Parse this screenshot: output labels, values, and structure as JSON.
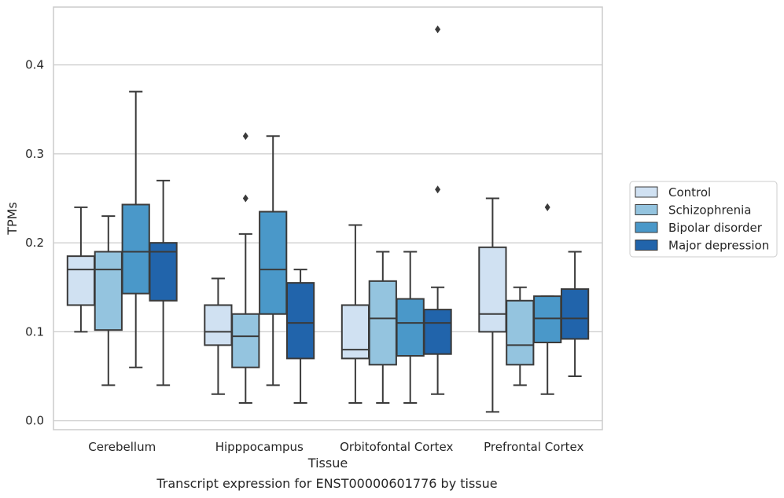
{
  "chart_data": {
    "type": "box",
    "title": "",
    "xlabel": "Tissue",
    "ylabel": "TPMs",
    "ylim": [
      -0.01,
      0.465
    ],
    "yticks": [
      0.0,
      0.1,
      0.2,
      0.3,
      0.4
    ],
    "ytick_labels": [
      "0.0",
      "0.1",
      "0.2",
      "0.3",
      "0.4"
    ],
    "grid": "y",
    "legend_position": "right",
    "categories": [
      "Cerebellum",
      "Hipppocampus",
      "Orbitofontal Cortex",
      "Prefrontal Cortex"
    ],
    "series": [
      {
        "name": "Control",
        "color": "#d0e1f2",
        "boxes": [
          {
            "whisker_low": 0.1,
            "q1": 0.13,
            "median": 0.17,
            "q3": 0.185,
            "whisker_high": 0.24,
            "outliers": []
          },
          {
            "whisker_low": 0.03,
            "q1": 0.085,
            "median": 0.1,
            "q3": 0.13,
            "whisker_high": 0.16,
            "outliers": []
          },
          {
            "whisker_low": 0.02,
            "q1": 0.07,
            "median": 0.08,
            "q3": 0.13,
            "whisker_high": 0.22,
            "outliers": []
          },
          {
            "whisker_low": 0.01,
            "q1": 0.1,
            "median": 0.12,
            "q3": 0.195,
            "whisker_high": 0.25,
            "outliers": []
          }
        ]
      },
      {
        "name": "Schizophrenia",
        "color": "#94c4df",
        "boxes": [
          {
            "whisker_low": 0.04,
            "q1": 0.102,
            "median": 0.17,
            "q3": 0.19,
            "whisker_high": 0.23,
            "outliers": []
          },
          {
            "whisker_low": 0.02,
            "q1": 0.06,
            "median": 0.095,
            "q3": 0.12,
            "whisker_high": 0.21,
            "outliers": [
              0.25,
              0.32
            ]
          },
          {
            "whisker_low": 0.02,
            "q1": 0.063,
            "median": 0.115,
            "q3": 0.157,
            "whisker_high": 0.19,
            "outliers": []
          },
          {
            "whisker_low": 0.04,
            "q1": 0.063,
            "median": 0.085,
            "q3": 0.135,
            "whisker_high": 0.15,
            "outliers": []
          }
        ]
      },
      {
        "name": "Bipolar disorder",
        "color": "#4a98c9",
        "boxes": [
          {
            "whisker_low": 0.06,
            "q1": 0.143,
            "median": 0.19,
            "q3": 0.243,
            "whisker_high": 0.37,
            "outliers": []
          },
          {
            "whisker_low": 0.04,
            "q1": 0.12,
            "median": 0.17,
            "q3": 0.235,
            "whisker_high": 0.32,
            "outliers": []
          },
          {
            "whisker_low": 0.02,
            "q1": 0.073,
            "median": 0.11,
            "q3": 0.137,
            "whisker_high": 0.19,
            "outliers": []
          },
          {
            "whisker_low": 0.03,
            "q1": 0.088,
            "median": 0.115,
            "q3": 0.14,
            "whisker_high": 0.14,
            "outliers": [
              0.24
            ]
          }
        ]
      },
      {
        "name": "Major depression",
        "color": "#2164ab",
        "boxes": [
          {
            "whisker_low": 0.04,
            "q1": 0.135,
            "median": 0.19,
            "q3": 0.2,
            "whisker_high": 0.27,
            "outliers": []
          },
          {
            "whisker_low": 0.02,
            "q1": 0.07,
            "median": 0.11,
            "q3": 0.155,
            "whisker_high": 0.17,
            "outliers": []
          },
          {
            "whisker_low": 0.03,
            "q1": 0.075,
            "median": 0.11,
            "q3": 0.125,
            "whisker_high": 0.15,
            "outliers": [
              0.26,
              0.44
            ]
          },
          {
            "whisker_low": 0.05,
            "q1": 0.092,
            "median": 0.115,
            "q3": 0.148,
            "whisker_high": 0.19,
            "outliers": []
          }
        ]
      }
    ]
  },
  "caption": "Transcript expression for ENST00000601776 by tissue"
}
